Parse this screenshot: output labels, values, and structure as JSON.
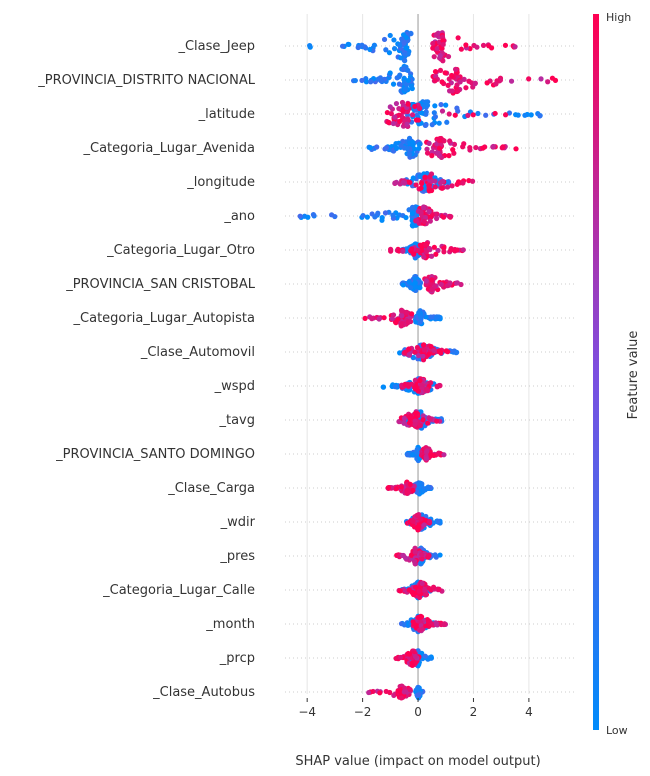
{
  "chart_data": {
    "type": "scatter",
    "subtype": "beeswarm",
    "xlabel": "SHAP value (impact on model output)",
    "xlim": [
      -4.8,
      5.7
    ],
    "x_ticks": [
      -4,
      -2,
      0,
      2,
      4
    ],
    "x_tick_labels": [
      "−4",
      "−2",
      "0",
      "2",
      "4"
    ],
    "grid": "horizontal lines per feature",
    "colorbar": {
      "title": "Feature value",
      "high_label": "High",
      "low_label": "Low",
      "low_color": "#008bfb",
      "high_color": "#ff0052"
    },
    "features": [
      {
        "name": "_Clase_Jeep",
        "low_range": [
          -4.1,
          -0.2
        ],
        "low_center": -0.5,
        "high_range": [
          0.5,
          3.6
        ],
        "high_center": 0.9,
        "max_width": 15
      },
      {
        "name": "_PROVINCIA_DISTRITO NACIONAL",
        "low_range": [
          -2.5,
          -0.2
        ],
        "low_center": -0.5,
        "high_range": [
          0.5,
          5.2
        ],
        "high_center": 1.4,
        "max_width": 14
      },
      {
        "name": "_latitude",
        "low_range": [
          -0.5,
          4.7
        ],
        "low_center": 0.3,
        "high_range": [
          -1.2,
          3.2
        ],
        "high_center": -0.4,
        "max_width": 13
      },
      {
        "name": "_Categoria_Lugar_Avenida",
        "low_range": [
          -1.9,
          0.1
        ],
        "low_center": -0.3,
        "high_range": [
          0.3,
          3.7
        ],
        "high_center": 0.8,
        "max_width": 10
      },
      {
        "name": "_longitude",
        "low_range": [
          -0.6,
          1.2
        ],
        "low_center": 0.2,
        "high_range": [
          -0.9,
          2.1
        ],
        "high_center": 0.4,
        "max_width": 10
      },
      {
        "name": "_ano",
        "low_range": [
          -4.5,
          0.0
        ],
        "low_center": -0.2,
        "high_range": [
          -0.1,
          1.3
        ],
        "high_center": 0.2,
        "max_width": 10
      },
      {
        "name": "_Categoria_Lugar_Otro",
        "low_range": [
          -0.7,
          0.2
        ],
        "low_center": -0.1,
        "high_range": [
          -1.0,
          1.7
        ],
        "high_center": 0.3,
        "max_width": 8
      },
      {
        "name": "_PROVINCIA_SAN CRISTOBAL",
        "low_range": [
          -0.6,
          0.1
        ],
        "low_center": -0.1,
        "high_range": [
          0.2,
          1.8
        ],
        "high_center": 0.5,
        "max_width": 8
      },
      {
        "name": "_Categoria_Lugar_Autopista",
        "low_range": [
          -0.1,
          0.8
        ],
        "low_center": 0.1,
        "high_range": [
          -2.1,
          -0.2
        ],
        "high_center": -0.6,
        "max_width": 8
      },
      {
        "name": "_Clase_Automovil",
        "low_range": [
          -0.7,
          1.5
        ],
        "low_center": 0.1,
        "high_range": [
          -0.6,
          1.3
        ],
        "high_center": 0.2,
        "max_width": 8
      },
      {
        "name": "_wspd",
        "low_range": [
          -1.3,
          0.6
        ],
        "low_center": 0.0,
        "high_range": [
          -0.6,
          1.0
        ],
        "high_center": 0.1,
        "max_width": 8
      },
      {
        "name": "_tavg",
        "low_range": [
          -0.6,
          0.9
        ],
        "low_center": 0.1,
        "high_range": [
          -0.8,
          0.8
        ],
        "high_center": -0.1,
        "max_width": 9
      },
      {
        "name": "_PROVINCIA_SANTO DOMINGO",
        "low_range": [
          -0.4,
          0.1
        ],
        "low_center": 0.0,
        "high_range": [
          0.1,
          1.0
        ],
        "high_center": 0.3,
        "max_width": 7
      },
      {
        "name": "_Clase_Carga",
        "low_range": [
          -0.2,
          0.6
        ],
        "low_center": 0.05,
        "high_range": [
          -1.1,
          -0.1
        ],
        "high_center": -0.4,
        "max_width": 6
      },
      {
        "name": "_wdir",
        "low_range": [
          -0.5,
          0.8
        ],
        "low_center": 0.1,
        "high_range": [
          -0.4,
          0.5
        ],
        "high_center": 0.0,
        "max_width": 8
      },
      {
        "name": "_pres",
        "low_range": [
          -0.2,
          0.8
        ],
        "low_center": 0.1,
        "high_range": [
          -0.8,
          0.4
        ],
        "high_center": -0.1,
        "max_width": 8
      },
      {
        "name": "_Categoria_Lugar_Calle",
        "low_range": [
          -0.6,
          0.5
        ],
        "low_center": 0.0,
        "high_range": [
          -0.7,
          0.9
        ],
        "high_center": 0.1,
        "max_width": 8
      },
      {
        "name": "_month",
        "low_range": [
          -0.6,
          0.6
        ],
        "low_center": 0.0,
        "high_range": [
          -0.2,
          1.0
        ],
        "high_center": 0.1,
        "max_width": 8
      },
      {
        "name": "_prcp",
        "low_range": [
          -0.3,
          0.5
        ],
        "low_center": 0.0,
        "high_range": [
          -0.8,
          0.1
        ],
        "high_center": -0.2,
        "max_width": 8
      },
      {
        "name": "_Clase_Autobus",
        "low_range": [
          -0.1,
          0.2
        ],
        "low_center": 0.02,
        "high_range": [
          -1.8,
          -0.2
        ],
        "high_center": -0.6,
        "max_width": 6
      }
    ]
  }
}
